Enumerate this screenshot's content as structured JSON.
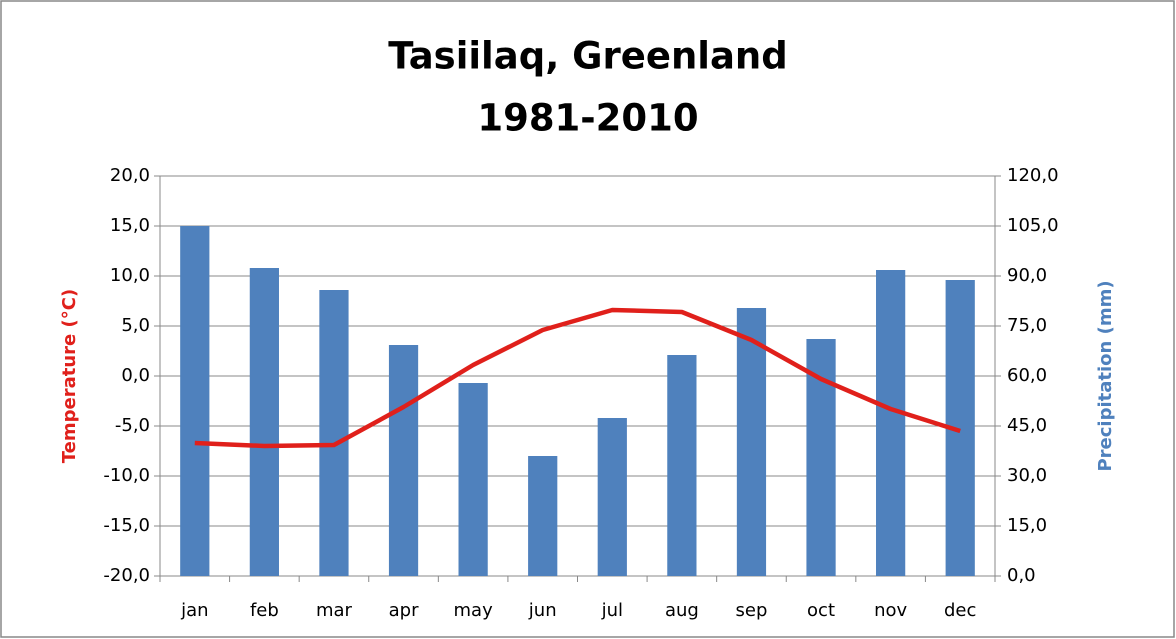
{
  "chart_data": {
    "type": "bar_line",
    "title": [
      "Tasiilaq, Greenland",
      "1981-2010"
    ],
    "y_label": "Temperature (°C)",
    "y2_label": "Precipitation (mm)",
    "categories": [
      "jan",
      "feb",
      "mar",
      "apr",
      "may",
      "jun",
      "jul",
      "aug",
      "sep",
      "oct",
      "nov",
      "dec"
    ],
    "series": [
      {
        "type": "bar",
        "axis": "y2",
        "color": "#4f81bd",
        "values": [
          105,
          92.4,
          85.8,
          69.3,
          57.9,
          36,
          47.4,
          66.3,
          80.4,
          71.1,
          91.8,
          88.8
        ]
      },
      {
        "type": "line",
        "axis": "y",
        "color": "#e0201b",
        "values": [
          -6.7,
          -7.0,
          -6.9,
          -3.1,
          1.1,
          4.6,
          6.6,
          6.4,
          3.6,
          -0.3,
          -3.3,
          -5.5
        ]
      }
    ],
    "ylim": [
      -20,
      20
    ],
    "yticks": [
      {
        "value": -20,
        "label": "-20,0"
      },
      {
        "value": -15,
        "label": "-15,0"
      },
      {
        "value": -10,
        "label": "-10,0"
      },
      {
        "value": -5,
        "label": "-5,0"
      },
      {
        "value": 0,
        "label": "0,0"
      },
      {
        "value": 5,
        "label": "5,0"
      },
      {
        "value": 10,
        "label": "10,0"
      },
      {
        "value": 15,
        "label": "15,0"
      },
      {
        "value": 20,
        "label": "20,0"
      }
    ],
    "y2lim": [
      0,
      120
    ],
    "y2ticks": [
      {
        "value": 0,
        "label": "0,0"
      },
      {
        "value": 15,
        "label": "15,0"
      },
      {
        "value": 30,
        "label": "30,0"
      },
      {
        "value": 45,
        "label": "45,0"
      },
      {
        "value": 60,
        "label": "60,0"
      },
      {
        "value": 75,
        "label": "75,0"
      },
      {
        "value": 90,
        "label": "90,0"
      },
      {
        "value": 105,
        "label": "105,0"
      },
      {
        "value": 120,
        "label": "120,0"
      }
    ],
    "grid": true
  }
}
